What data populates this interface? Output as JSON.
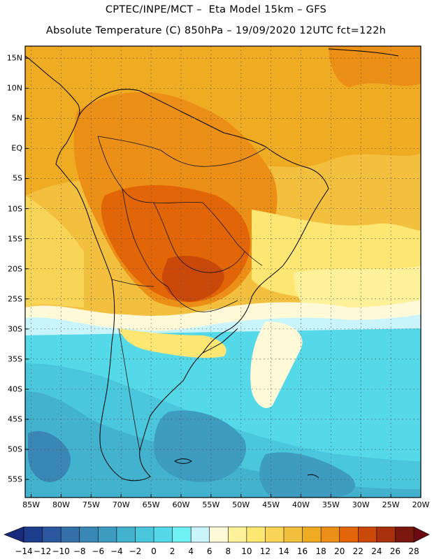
{
  "header": {
    "line1": "CPTEC/INPE/MCT –  Eta Model 15km – GFS",
    "line2": "Absolute Temperature (C) 850hPa – 19/09/2020 12UTC fct=122h"
  },
  "map": {
    "lat_labels": [
      "15N",
      "10N",
      "5N",
      "EQ",
      "5S",
      "10S",
      "15S",
      "20S",
      "25S",
      "30S",
      "35S",
      "40S",
      "45S",
      "50S",
      "55S"
    ],
    "lat_values": [
      15,
      10,
      5,
      0,
      -5,
      -10,
      -15,
      -20,
      -25,
      -30,
      -35,
      -40,
      -45,
      -50,
      -55
    ],
    "lon_labels": [
      "85W",
      "80W",
      "75W",
      "70W",
      "65W",
      "60W",
      "55W",
      "50W",
      "45W",
      "40W",
      "35W",
      "30W",
      "25W",
      "20W"
    ],
    "lon_values": [
      -85,
      -80,
      -75,
      -70,
      -65,
      -60,
      -55,
      -50,
      -45,
      -40,
      -35,
      -30,
      -25,
      -20
    ],
    "extent": {
      "lon": [
        -86,
        -20
      ],
      "lat": [
        -58,
        17
      ]
    },
    "grid": "dotted",
    "field": "temperature at 850hPa (C)"
  },
  "colorbar": {
    "labels": [
      "-14",
      "-12",
      "-10",
      "-8",
      "-6",
      "-4",
      "-2",
      "0",
      "2",
      "4",
      "6",
      "8",
      "10",
      "12",
      "14",
      "16",
      "18",
      "20",
      "22",
      "24",
      "26",
      "28"
    ],
    "boundaries": [
      -14,
      -12,
      -10,
      -8,
      -6,
      -4,
      -2,
      0,
      2,
      4,
      6,
      8,
      10,
      12,
      14,
      16,
      18,
      20,
      22,
      24,
      26,
      28
    ],
    "colors": [
      "#1e3c8c",
      "#2a579e",
      "#3470a8",
      "#3a86b4",
      "#3e9cc0",
      "#43b2cf",
      "#4ac6dd",
      "#55d8e8",
      "#6ff0f3",
      "#c9f4fb",
      "#fff9d8",
      "#fef19a",
      "#fde672",
      "#f9d557",
      "#f2bf3e",
      "#efab22",
      "#ec8f16",
      "#e26608",
      "#c9480a",
      "#a8300c",
      "#7a1810"
    ],
    "under_color": "#1a2a7a",
    "over_color": "#6a0a10"
  }
}
